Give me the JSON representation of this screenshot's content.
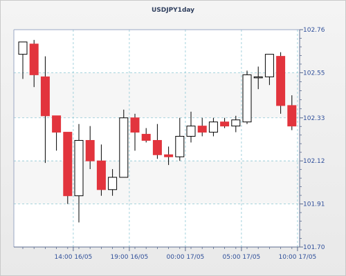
{
  "chart_data": {
    "type": "candlestick",
    "title": "USDJPY1day",
    "y_ticks": [
      "102.76",
      "102.55",
      "102.33",
      "102.12",
      "101.91",
      "101.70"
    ],
    "y_tick_values": [
      102.76,
      102.55,
      102.33,
      102.12,
      101.91,
      101.7
    ],
    "ylim": [
      101.7,
      102.76
    ],
    "x_ticks": [
      "14:00 16/05",
      "19:00 16/05",
      "00:00 17/05",
      "05:00 17/05",
      "10:00 17/05"
    ],
    "x_tick_candle_index": [
      4.5,
      9.5,
      14.5,
      19.5,
      24.5
    ],
    "grid": true,
    "colors": {
      "up_fill": "#ffffff",
      "up_border": "#000000",
      "down_fill": "#e2343d",
      "wick": "#000000",
      "grid": "#8cc7d4",
      "axis_text": "#2f4f9a",
      "title": "#2f3f5e",
      "plot_bg": "#ffffff",
      "band_bg": "#f6f6f6"
    },
    "candles": [
      {
        "open": 102.64,
        "high": 102.69,
        "low": 102.52,
        "close": 102.7
      },
      {
        "open": 102.69,
        "high": 102.71,
        "low": 102.48,
        "close": 102.54
      },
      {
        "open": 102.53,
        "high": 102.63,
        "low": 102.11,
        "close": 102.34
      },
      {
        "open": 102.34,
        "high": 102.34,
        "low": 102.17,
        "close": 102.26
      },
      {
        "open": 102.26,
        "high": 102.26,
        "low": 101.91,
        "close": 101.95
      },
      {
        "open": 101.95,
        "high": 102.3,
        "low": 101.82,
        "close": 102.22
      },
      {
        "open": 102.22,
        "high": 102.29,
        "low": 102.08,
        "close": 102.12
      },
      {
        "open": 102.12,
        "high": 102.2,
        "low": 101.95,
        "close": 101.98
      },
      {
        "open": 101.98,
        "high": 102.08,
        "low": 101.95,
        "close": 102.04
      },
      {
        "open": 102.04,
        "high": 102.37,
        "low": 102.04,
        "close": 102.33
      },
      {
        "open": 102.33,
        "high": 102.35,
        "low": 102.17,
        "close": 102.26
      },
      {
        "open": 102.25,
        "high": 102.28,
        "low": 102.21,
        "close": 102.22
      },
      {
        "open": 102.22,
        "high": 102.3,
        "low": 102.13,
        "close": 102.15
      },
      {
        "open": 102.15,
        "high": 102.19,
        "low": 102.1,
        "close": 102.14
      },
      {
        "open": 102.14,
        "high": 102.33,
        "low": 102.12,
        "close": 102.24
      },
      {
        "open": 102.24,
        "high": 102.36,
        "low": 102.21,
        "close": 102.29
      },
      {
        "open": 102.29,
        "high": 102.33,
        "low": 102.24,
        "close": 102.26
      },
      {
        "open": 102.26,
        "high": 102.33,
        "low": 102.24,
        "close": 102.31
      },
      {
        "open": 102.31,
        "high": 102.33,
        "low": 102.28,
        "close": 102.29
      },
      {
        "open": 102.29,
        "high": 102.34,
        "low": 102.26,
        "close": 102.32
      },
      {
        "open": 102.31,
        "high": 102.56,
        "low": 102.3,
        "close": 102.54
      },
      {
        "open": 102.53,
        "high": 102.58,
        "low": 102.47,
        "close": 102.53
      },
      {
        "open": 102.53,
        "high": 102.64,
        "low": 102.49,
        "close": 102.64
      },
      {
        "open": 102.63,
        "high": 102.65,
        "low": 102.35,
        "close": 102.39
      },
      {
        "open": 102.39,
        "high": 102.44,
        "low": 102.27,
        "close": 102.29
      }
    ]
  }
}
